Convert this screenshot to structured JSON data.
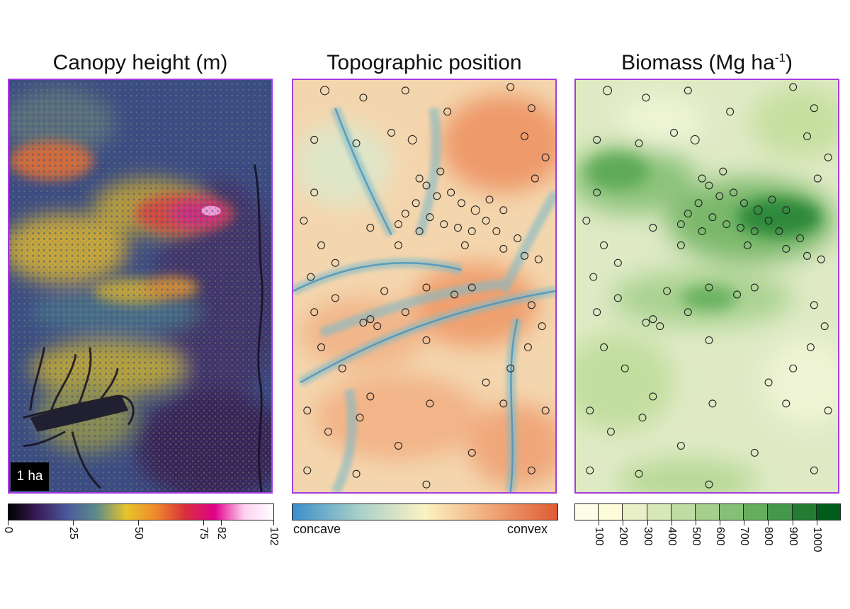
{
  "panels": {
    "canopy": {
      "title": "Canopy height (m)",
      "scale_label": "1 ha",
      "colorbar": {
        "ticks": [
          "0",
          "25",
          "50",
          "75",
          "82",
          "102"
        ],
        "tick_values": [
          0,
          25,
          50,
          75,
          82,
          102
        ],
        "range": [
          0,
          102
        ],
        "colors": [
          "#000000",
          "#3b1c5a",
          "#4a5a9c",
          "#5d8c8a",
          "#e6c52a",
          "#ef8a2c",
          "#d9303a",
          "#e0008a",
          "#ffd0f0",
          "#ffffff"
        ]
      }
    },
    "topo": {
      "title": "Topographic position",
      "left_label": "concave",
      "right_label": "convex",
      "colors": [
        "#3a8fca",
        "#a8cfc8",
        "#fbf3c2",
        "#f1a777",
        "#e05a34"
      ]
    },
    "biomass": {
      "title_main": "Biomass (Mg ha",
      "title_sup": "-1",
      "title_end": ")",
      "colorbar": {
        "ticks": [
          "100",
          "200",
          "300",
          "400",
          "500",
          "600",
          "700",
          "800",
          "900",
          "1000"
        ],
        "tick_values": [
          100,
          200,
          300,
          400,
          500,
          600,
          700,
          800,
          900,
          1000
        ],
        "colors": [
          "#fdfde8",
          "#fcfcd8",
          "#e9f0c8",
          "#d6e8b8",
          "#bfdca2",
          "#a4cf8c",
          "#86bf76",
          "#66ad5e",
          "#45974a",
          "#227d33",
          "#005c1a"
        ]
      }
    }
  }
}
